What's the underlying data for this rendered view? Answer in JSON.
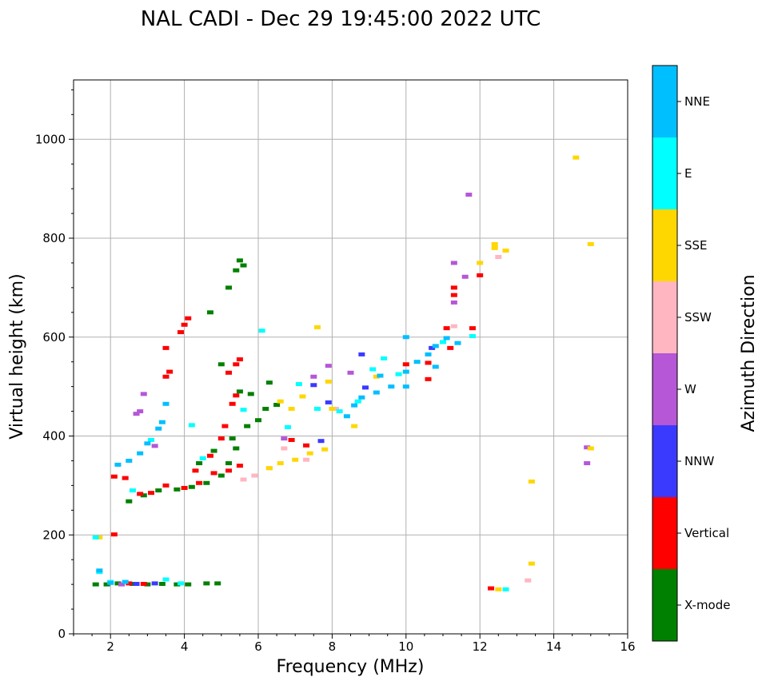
{
  "chart_data": {
    "type": "scatter",
    "title": "NAL CADI - Dec 29 19:45:00 2022 UTC",
    "xlabel": "Frequency (MHz)",
    "ylabel": "Virtual height (km)",
    "xlim": [
      1,
      16
    ],
    "ylim": [
      0,
      1120
    ],
    "xticks": [
      2,
      4,
      6,
      8,
      10,
      12,
      14,
      16
    ],
    "yticks": [
      0,
      200,
      400,
      600,
      800,
      1000
    ],
    "grid": true,
    "colorbar": {
      "label": "Azimuth Direction",
      "categories": [
        {
          "name": "X-mode",
          "color": "#008000"
        },
        {
          "name": "Vertical",
          "color": "#ff0000"
        },
        {
          "name": "NNW",
          "color": "#3a3aff"
        },
        {
          "name": "W",
          "color": "#b557d6"
        },
        {
          "name": "SSW",
          "color": "#ffb6c1"
        },
        {
          "name": "SSE",
          "color": "#ffd700"
        },
        {
          "name": "E",
          "color": "#00ffff"
        },
        {
          "name": "NNE",
          "color": "#00bfff"
        }
      ]
    },
    "series": [
      {
        "name": "X-mode",
        "points": [
          [
            1.6,
            100
          ],
          [
            1.9,
            100
          ],
          [
            2.2,
            102
          ],
          [
            2.6,
            101
          ],
          [
            3.0,
            100
          ],
          [
            3.4,
            101
          ],
          [
            3.8,
            100
          ],
          [
            4.1,
            100
          ],
          [
            4.6,
            102
          ],
          [
            4.9,
            102
          ],
          [
            2.5,
            268
          ],
          [
            2.9,
            280
          ],
          [
            3.3,
            290
          ],
          [
            3.8,
            292
          ],
          [
            4.2,
            297
          ],
          [
            4.6,
            305
          ],
          [
            5.0,
            320
          ],
          [
            5.2,
            345
          ],
          [
            5.4,
            375
          ],
          [
            4.4,
            345
          ],
          [
            4.8,
            370
          ],
          [
            5.3,
            395
          ],
          [
            5.7,
            420
          ],
          [
            6.0,
            432
          ],
          [
            6.2,
            455
          ],
          [
            5.5,
            490
          ],
          [
            5.0,
            545
          ],
          [
            4.7,
            650
          ],
          [
            5.2,
            700
          ],
          [
            5.4,
            735
          ],
          [
            5.5,
            755
          ],
          [
            5.6,
            745
          ],
          [
            5.8,
            485
          ],
          [
            6.3,
            508
          ],
          [
            6.5,
            463
          ]
        ]
      },
      {
        "name": "Vertical",
        "points": [
          [
            2.1,
            318
          ],
          [
            2.4,
            315
          ],
          [
            2.8,
            283
          ],
          [
            3.1,
            285
          ],
          [
            3.5,
            300
          ],
          [
            4.0,
            295
          ],
          [
            4.4,
            305
          ],
          [
            4.8,
            325
          ],
          [
            5.2,
            330
          ],
          [
            5.5,
            340
          ],
          [
            3.5,
            520
          ],
          [
            3.6,
            530
          ],
          [
            3.5,
            578
          ],
          [
            3.9,
            610
          ],
          [
            4.0,
            625
          ],
          [
            4.1,
            638
          ],
          [
            4.3,
            330
          ],
          [
            4.7,
            360
          ],
          [
            5.0,
            395
          ],
          [
            5.1,
            420
          ],
          [
            5.3,
            465
          ],
          [
            5.4,
            545
          ],
          [
            5.5,
            555
          ],
          [
            5.2,
            528
          ],
          [
            5.4,
            482
          ],
          [
            2.1,
            201
          ],
          [
            2.5,
            102
          ],
          [
            2.9,
            101
          ],
          [
            6.9,
            392
          ],
          [
            7.3,
            381
          ],
          [
            10.0,
            545
          ],
          [
            10.6,
            515
          ],
          [
            11.2,
            578
          ],
          [
            11.1,
            618
          ],
          [
            11.3,
            700
          ],
          [
            11.3,
            685
          ],
          [
            11.8,
            618
          ],
          [
            12.3,
            92
          ],
          [
            12.0,
            725
          ],
          [
            10.6,
            548
          ]
        ]
      },
      {
        "name": "NNW",
        "points": [
          [
            2.7,
            101
          ],
          [
            3.2,
            102
          ],
          [
            8.8,
            565
          ],
          [
            8.9,
            498
          ],
          [
            10.7,
            578
          ],
          [
            7.9,
            468
          ],
          [
            7.5,
            503
          ],
          [
            7.7,
            390
          ]
        ]
      },
      {
        "name": "W",
        "points": [
          [
            2.9,
            485
          ],
          [
            2.8,
            450
          ],
          [
            2.7,
            445
          ],
          [
            3.2,
            380
          ],
          [
            6.7,
            395
          ],
          [
            7.5,
            520
          ],
          [
            7.9,
            542
          ],
          [
            8.5,
            528
          ],
          [
            11.3,
            750
          ],
          [
            11.6,
            722
          ],
          [
            11.7,
            888
          ],
          [
            11.3,
            670
          ],
          [
            14.9,
            377
          ],
          [
            14.9,
            345
          ],
          [
            2.3,
            100
          ]
        ]
      },
      {
        "name": "SSW",
        "points": [
          [
            5.6,
            312
          ],
          [
            5.9,
            320
          ],
          [
            6.3,
            335
          ],
          [
            6.7,
            375
          ],
          [
            7.3,
            352
          ],
          [
            8.1,
            455
          ],
          [
            12.5,
            762
          ],
          [
            13.3,
            108
          ],
          [
            11.3,
            622
          ]
        ]
      },
      {
        "name": "SSE",
        "points": [
          [
            6.3,
            335
          ],
          [
            6.6,
            345
          ],
          [
            7.0,
            352
          ],
          [
            7.4,
            365
          ],
          [
            7.8,
            373
          ],
          [
            6.6,
            470
          ],
          [
            6.9,
            455
          ],
          [
            7.2,
            480
          ],
          [
            7.6,
            455
          ],
          [
            7.9,
            510
          ],
          [
            8.0,
            455
          ],
          [
            8.6,
            420
          ],
          [
            9.2,
            520
          ],
          [
            7.6,
            620
          ],
          [
            12.0,
            750
          ],
          [
            12.4,
            780
          ],
          [
            12.7,
            775
          ],
          [
            12.4,
            788
          ],
          [
            13.4,
            308
          ],
          [
            13.4,
            142
          ],
          [
            14.6,
            963
          ],
          [
            15.0,
            788
          ],
          [
            15.0,
            375
          ],
          [
            12.5,
            90
          ],
          [
            1.7,
            195
          ]
        ]
      },
      {
        "name": "E",
        "points": [
          [
            1.6,
            195
          ],
          [
            1.7,
            125
          ],
          [
            2.0,
            105
          ],
          [
            2.6,
            290
          ],
          [
            3.1,
            392
          ],
          [
            3.5,
            110
          ],
          [
            3.9,
            102
          ],
          [
            4.2,
            422
          ],
          [
            4.5,
            355
          ],
          [
            5.6,
            453
          ],
          [
            6.1,
            613
          ],
          [
            7.1,
            505
          ],
          [
            7.6,
            455
          ],
          [
            8.2,
            450
          ],
          [
            8.7,
            470
          ],
          [
            9.1,
            535
          ],
          [
            9.4,
            557
          ],
          [
            9.8,
            525
          ],
          [
            11.0,
            590
          ],
          [
            11.8,
            602
          ],
          [
            12.7,
            90
          ],
          [
            6.8,
            418
          ]
        ]
      },
      {
        "name": "NNE",
        "points": [
          [
            2.2,
            342
          ],
          [
            2.5,
            350
          ],
          [
            2.8,
            365
          ],
          [
            3.0,
            385
          ],
          [
            3.3,
            415
          ],
          [
            3.4,
            428
          ],
          [
            3.5,
            465
          ],
          [
            1.7,
            128
          ],
          [
            2.0,
            103
          ],
          [
            2.4,
            105
          ],
          [
            8.4,
            440
          ],
          [
            8.6,
            462
          ],
          [
            8.8,
            478
          ],
          [
            9.2,
            488
          ],
          [
            9.6,
            500
          ],
          [
            10.0,
            500
          ],
          [
            10.0,
            530
          ],
          [
            10.0,
            600
          ],
          [
            10.3,
            550
          ],
          [
            10.6,
            565
          ],
          [
            10.8,
            540
          ],
          [
            10.8,
            582
          ],
          [
            11.1,
            598
          ],
          [
            11.4,
            588
          ],
          [
            9.3,
            522
          ]
        ]
      }
    ]
  }
}
